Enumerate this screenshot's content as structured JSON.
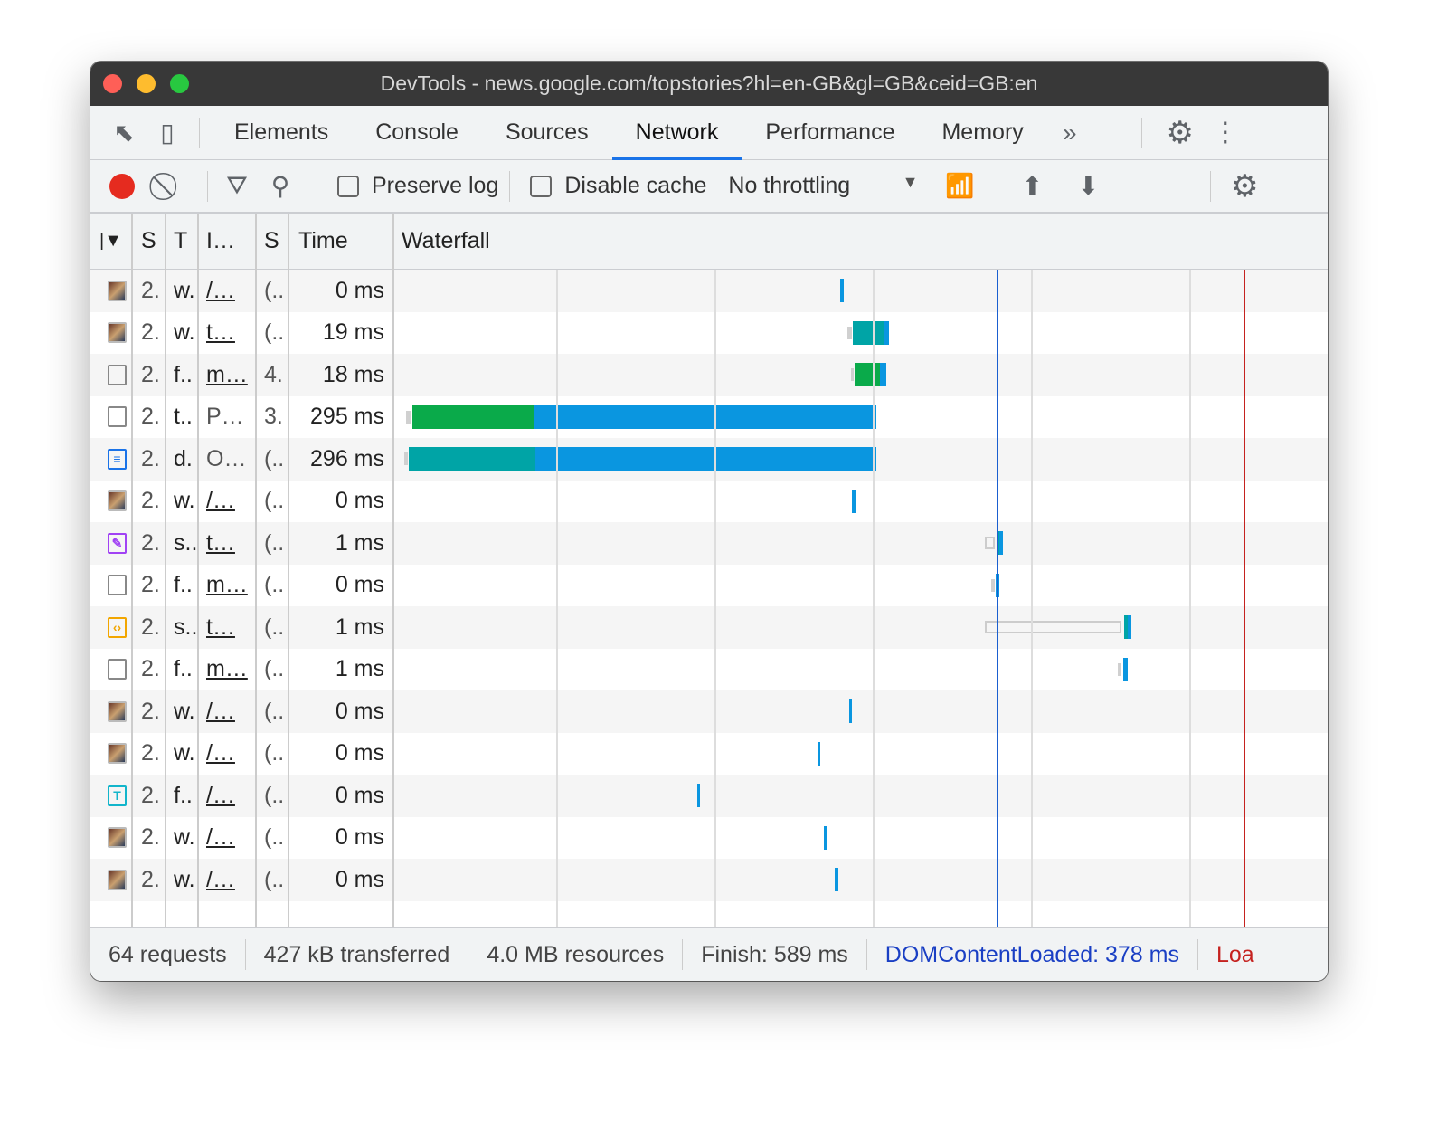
{
  "window": {
    "title": "DevTools - news.google.com/topstories?hl=en-GB&gl=GB&ceid=GB:en"
  },
  "tabs": [
    {
      "label": "Elements"
    },
    {
      "label": "Console"
    },
    {
      "label": "Sources"
    },
    {
      "label": "Network",
      "active": true
    },
    {
      "label": "Performance"
    },
    {
      "label": "Memory"
    }
  ],
  "toolbar": {
    "preserve_log": "Preserve log",
    "disable_cache": "Disable cache",
    "throttling": "No throttling",
    "preserve_checked": false,
    "cache_checked": false
  },
  "columns": [
    "",
    "S",
    "T",
    "I…",
    "S",
    "Time",
    "Waterfall"
  ],
  "rows": [
    {
      "icon": "image",
      "c1": "2.",
      "c2": "w.",
      "c3": "/…",
      "c3u": true,
      "c4": "(..",
      "time": "0 ms",
      "bars": [
        {
          "s": 279.5,
          "e": 281.5,
          "c": "blue"
        }
      ]
    },
    {
      "icon": "image",
      "c1": "2.",
      "c2": "w.",
      "c3": "t…",
      "c3u": true,
      "c4": "(..",
      "time": "19 ms",
      "bars": [
        {
          "s": 284,
          "e": 287,
          "c": "gray"
        },
        {
          "s": 287.5,
          "e": 307,
          "c": "teal"
        },
        {
          "s": 307,
          "e": 310,
          "c": "blue"
        }
      ]
    },
    {
      "icon": "blank",
      "c1": "2.",
      "c2": "f..",
      "c3": "m…",
      "c3u": true,
      "c4": "4.",
      "time": "18 ms",
      "bars": [
        {
          "s": 286,
          "e": 288,
          "c": "gray"
        },
        {
          "s": 288.5,
          "e": 304.5,
          "c": "green"
        },
        {
          "s": 304.5,
          "e": 308.5,
          "c": "blue"
        }
      ]
    },
    {
      "icon": "blank",
      "c1": "2.",
      "c2": "t..",
      "c3": "P…",
      "c3u": false,
      "c4": "3.",
      "time": "295 ms",
      "bars": [
        {
          "s": 5,
          "e": 8,
          "c": "gray"
        },
        {
          "s": 9,
          "e": 86,
          "c": "green"
        },
        {
          "s": 86,
          "e": 302,
          "c": "blue"
        }
      ]
    },
    {
      "icon": "document",
      "c1": "2.",
      "c2": "d.",
      "c3": "O…",
      "c3u": false,
      "c4": "(..",
      "time": "296 ms",
      "bars": [
        {
          "s": 4,
          "e": 6,
          "c": "gray"
        },
        {
          "s": 7,
          "e": 87,
          "c": "teal"
        },
        {
          "s": 87,
          "e": 302,
          "c": "blue"
        }
      ]
    },
    {
      "icon": "image",
      "c1": "2.",
      "c2": "w.",
      "c3": "/…",
      "c3u": true,
      "c4": "(..",
      "time": "0 ms",
      "bars": [
        {
          "s": 287,
          "e": 289,
          "c": "blue"
        }
      ]
    },
    {
      "icon": "stylesheet",
      "c1": "2.",
      "c2": "s..",
      "c3": "t…",
      "c3u": true,
      "c4": "(..",
      "time": "1 ms",
      "bars": [
        {
          "s": 371,
          "e": 377,
          "c": "outline"
        },
        {
          "s": 378,
          "e": 380,
          "c": "teal"
        },
        {
          "s": 380,
          "e": 382.5,
          "c": "blue"
        }
      ]
    },
    {
      "icon": "blank",
      "c1": "2.",
      "c2": "f..",
      "c3": "m…",
      "c3u": true,
      "c4": "(..",
      "time": "0 ms",
      "bars": [
        {
          "s": 375,
          "e": 377,
          "c": "gray"
        },
        {
          "s": 377.5,
          "e": 380,
          "c": "blue"
        }
      ]
    },
    {
      "icon": "script",
      "c1": "2.",
      "c2": "s..",
      "c3": "t…",
      "c3u": true,
      "c4": "(..",
      "time": "1 ms",
      "bars": [
        {
          "s": 371,
          "e": 457,
          "c": "outline"
        },
        {
          "s": 459,
          "e": 461,
          "c": "teal"
        },
        {
          "s": 461,
          "e": 463.5,
          "c": "blue"
        }
      ]
    },
    {
      "icon": "blank",
      "c1": "2.",
      "c2": "f..",
      "c3": "m…",
      "c3u": true,
      "c4": "(..",
      "time": "1 ms",
      "bars": [
        {
          "s": 455,
          "e": 457,
          "c": "gray"
        },
        {
          "s": 458,
          "e": 461,
          "c": "blue"
        }
      ]
    },
    {
      "icon": "image",
      "c1": "2.",
      "c2": "w.",
      "c3": "/…",
      "c3u": true,
      "c4": "(..",
      "time": "0 ms",
      "bars": [
        {
          "s": 285,
          "e": 287,
          "c": "blue"
        }
      ]
    },
    {
      "icon": "image",
      "c1": "2.",
      "c2": "w.",
      "c3": "/…",
      "c3u": true,
      "c4": "(..",
      "time": "0 ms",
      "bars": [
        {
          "s": 265,
          "e": 267,
          "c": "blue"
        }
      ]
    },
    {
      "icon": "font",
      "c1": "2.",
      "c2": "f..",
      "c3": "/…",
      "c3u": true,
      "c4": "(..",
      "time": "0 ms",
      "bars": [
        {
          "s": 189,
          "e": 191,
          "c": "blue"
        }
      ]
    },
    {
      "icon": "image",
      "c1": "2.",
      "c2": "w.",
      "c3": "/…",
      "c3u": true,
      "c4": "(..",
      "time": "0 ms",
      "bars": [
        {
          "s": 269,
          "e": 271,
          "c": "blue"
        }
      ]
    },
    {
      "icon": "image",
      "c1": "2.",
      "c2": "w.",
      "c3": "/…",
      "c3u": true,
      "c4": "(..",
      "time": "0 ms",
      "bars": [
        {
          "s": 276,
          "e": 278,
          "c": "blue"
        }
      ]
    }
  ],
  "waterfall": {
    "dom_content_loaded_ms": 378,
    "load_ms": 534,
    "gridline_step_ms": 100,
    "colors": {
      "blue": "#0a96e0",
      "teal": "#00a4a6",
      "green": "#0aaa4a",
      "gray": "#d0d0d0",
      "dcl": "#1a5fd0",
      "load": "#c5221f"
    }
  },
  "footer": {
    "requests": "64 requests",
    "transferred": "427 kB transferred",
    "resources": "4.0 MB resources",
    "finish": "Finish: 589 ms",
    "dcl": "DOMContentLoaded: 378 ms",
    "load": "Loa"
  }
}
